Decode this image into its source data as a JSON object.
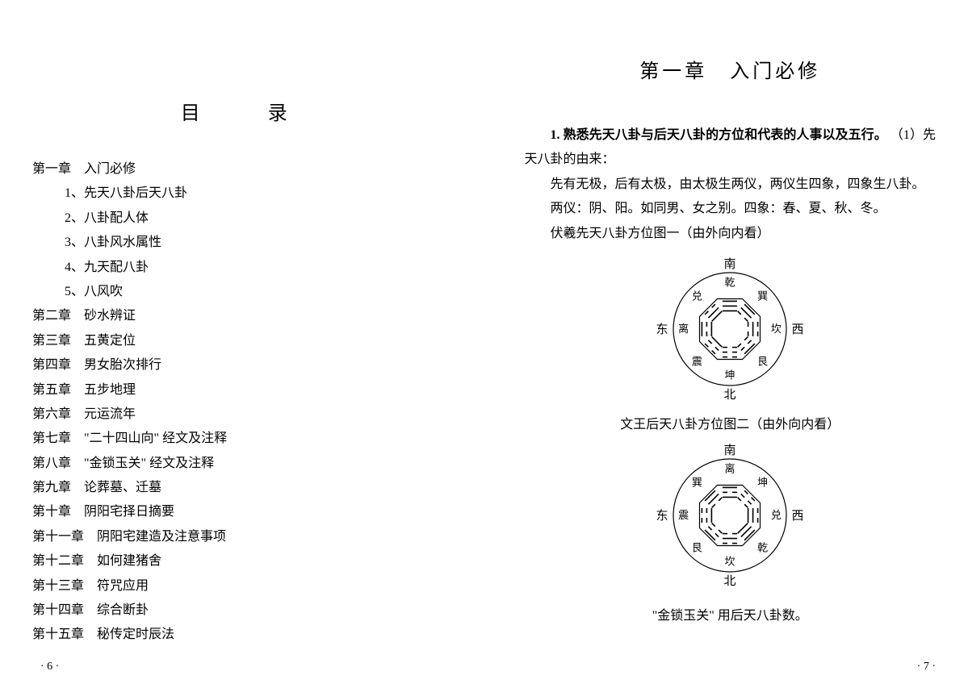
{
  "left": {
    "toc_title": "目　录",
    "chapters": [
      {
        "label": "第一章　入门必修",
        "subs": [
          "1、先天八卦后天八卦",
          "2、八卦配人体",
          "3、八卦风水属性",
          "4、九天配八卦",
          "5、八风吹"
        ]
      },
      {
        "label": "第二章　砂水辨证"
      },
      {
        "label": "第三章　五黄定位"
      },
      {
        "label": "第四章　男女胎次排行"
      },
      {
        "label": "第五章　五步地理"
      },
      {
        "label": "第六章　元运流年"
      },
      {
        "label": "第七章　\"二十四山向\" 经文及注释"
      },
      {
        "label": "第八章　\"金锁玉关\" 经文及注释"
      },
      {
        "label": "第九章　论葬墓、迁墓"
      },
      {
        "label": "第十章　阴阳宅择日摘要"
      },
      {
        "label": "第十一章　阴阳宅建造及注意事项"
      },
      {
        "label": "第十二章　如何建猪舍"
      },
      {
        "label": "第十三章　符咒应用"
      },
      {
        "label": "第十四章　综合断卦"
      },
      {
        "label": "第十五章　秘传定时辰法"
      }
    ],
    "page_num": "· 6 ·"
  },
  "right": {
    "chapter_title": "第一章　入门必修",
    "para1": "1. 熟悉先天八卦与后天八卦的方位和代表的人事以及五行。",
    "para1b": "（1）先天八卦的由来：",
    "para2": "先有无极，后有太极，由太极生两仪，两仪生四象，四象生八卦。",
    "para3": "两仪：阴、阳。如同男、女之别。四象：春、夏、秋、冬。",
    "para4": "伏羲先天八卦方位图一（由外向内看）",
    "bagua1": {
      "dirs": {
        "n": "南",
        "s": "北",
        "e": "东",
        "w": "西"
      },
      "trigrams": [
        {
          "name": "乾",
          "pos": "top",
          "lines": [
            1,
            1,
            1
          ]
        },
        {
          "name": "巽",
          "pos": "tr",
          "lines": [
            1,
            1,
            0
          ]
        },
        {
          "name": "坎",
          "pos": "right",
          "lines": [
            0,
            1,
            0
          ]
        },
        {
          "name": "艮",
          "pos": "br",
          "lines": [
            1,
            0,
            0
          ]
        },
        {
          "name": "坤",
          "pos": "bottom",
          "lines": [
            0,
            0,
            0
          ]
        },
        {
          "name": "震",
          "pos": "bl",
          "lines": [
            0,
            0,
            1
          ]
        },
        {
          "name": "离",
          "pos": "left",
          "lines": [
            1,
            0,
            1
          ]
        },
        {
          "name": "兑",
          "pos": "tl",
          "lines": [
            0,
            1,
            1
          ]
        }
      ]
    },
    "caption1": "文王后天八卦方位图二（由外向内看）",
    "bagua2": {
      "dirs": {
        "n": "南",
        "s": "北",
        "e": "东",
        "w": "西"
      },
      "trigrams": [
        {
          "name": "离",
          "pos": "top",
          "lines": [
            1,
            0,
            1
          ]
        },
        {
          "name": "坤",
          "pos": "tr",
          "lines": [
            0,
            0,
            0
          ]
        },
        {
          "name": "兑",
          "pos": "right",
          "lines": [
            0,
            1,
            1
          ]
        },
        {
          "name": "乾",
          "pos": "br",
          "lines": [
            1,
            1,
            1
          ]
        },
        {
          "name": "坎",
          "pos": "bottom",
          "lines": [
            0,
            1,
            0
          ]
        },
        {
          "name": "艮",
          "pos": "bl",
          "lines": [
            1,
            0,
            0
          ]
        },
        {
          "name": "震",
          "pos": "left",
          "lines": [
            0,
            0,
            1
          ]
        },
        {
          "name": "巽",
          "pos": "tl",
          "lines": [
            1,
            1,
            0
          ]
        }
      ]
    },
    "footnote": "\"金锁玉关\" 用后天八卦数。",
    "page_num": "· 7 ·"
  },
  "style": {
    "text_color": "#000000",
    "bg_color": "#ffffff",
    "body_fontsize": 16,
    "title_fontsize": 24,
    "line_height": 1.9,
    "bagua_radius": 70,
    "bagua_stroke": "#000000",
    "bagua_stroke_width": 1.2
  }
}
